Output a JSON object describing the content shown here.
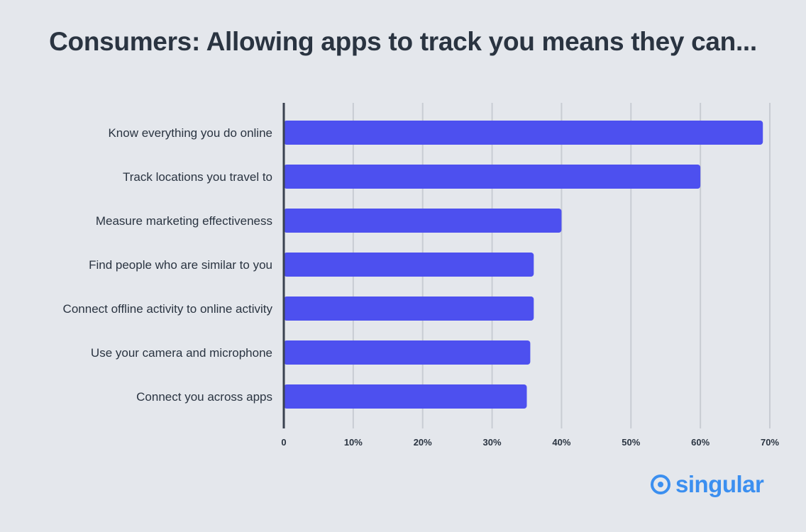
{
  "chart_data": {
    "type": "bar",
    "orientation": "horizontal",
    "title": "Consumers: Allowing apps to track you means they can...",
    "categories": [
      "Know everything you do online",
      "Track locations you travel to",
      "Measure marketing effectiveness",
      "Find people who are similar to you",
      "Connect offline activity to online activity",
      "Use your camera and microphone",
      "Connect you across apps"
    ],
    "values": [
      69,
      60,
      40,
      36,
      36,
      35.5,
      35
    ],
    "xlim": [
      0,
      70
    ],
    "x_ticks": [
      "0",
      "10%",
      "20%",
      "30%",
      "40%",
      "50%",
      "60%",
      "70%"
    ],
    "grid": true,
    "bar_color": "#4d50ef",
    "grid_color": "#c8ccd3",
    "axis_color": "#3a4250"
  },
  "brand": {
    "name": "singular",
    "color": "#3b8ff0",
    "icon": "singular-logo-icon"
  }
}
